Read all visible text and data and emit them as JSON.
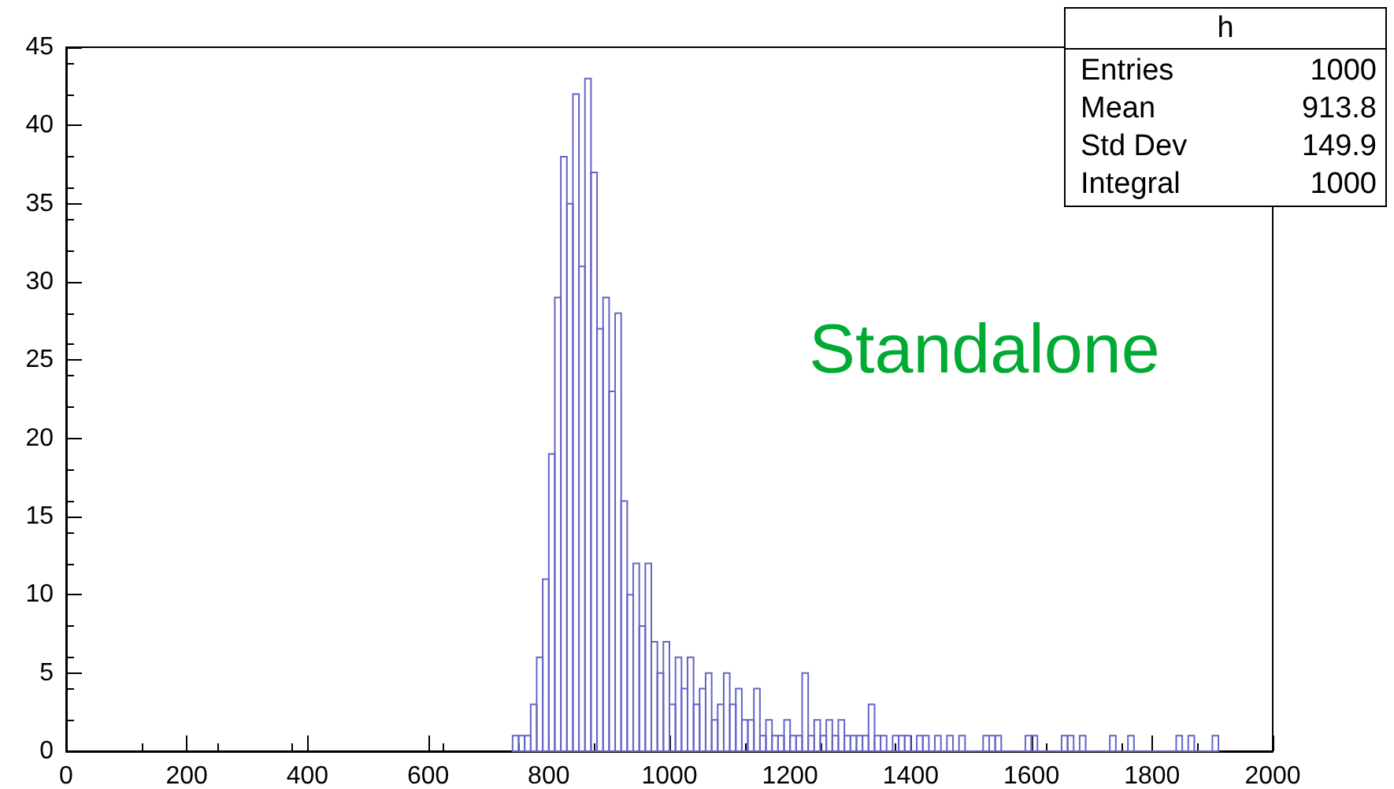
{
  "chart_data": {
    "type": "histogram",
    "bins": [
      740,
      750,
      760,
      770,
      780,
      790,
      800,
      810,
      820,
      830,
      840,
      850,
      860,
      870,
      880,
      890,
      900,
      910,
      920,
      930,
      940,
      950,
      960,
      970,
      980,
      990,
      1000,
      1010,
      1020,
      1030,
      1040,
      1050,
      1060,
      1070,
      1080,
      1090,
      1100,
      1110,
      1120,
      1130,
      1140,
      1150,
      1160,
      1170,
      1180,
      1190,
      1200,
      1210,
      1220,
      1230,
      1240,
      1250,
      1260,
      1270,
      1280,
      1290,
      1300,
      1310,
      1320,
      1330,
      1340,
      1350,
      1360,
      1370,
      1380,
      1390,
      1400,
      1410,
      1420,
      1430,
      1440,
      1450,
      1460,
      1470,
      1480,
      1490,
      1500,
      1510,
      1520,
      1530,
      1540,
      1550,
      1560,
      1570,
      1580,
      1590,
      1600,
      1610,
      1620,
      1630,
      1640,
      1650,
      1660,
      1670,
      1680,
      1690,
      1700,
      1710,
      1720,
      1730,
      1740,
      1750,
      1760,
      1770,
      1780,
      1790,
      1800,
      1810,
      1820,
      1830,
      1840,
      1850,
      1860,
      1870,
      1880,
      1890,
      1900,
      1910
    ],
    "values": [
      1,
      1,
      1,
      3,
      6,
      11,
      19,
      29,
      38,
      35,
      42,
      31,
      43,
      37,
      27,
      29,
      23,
      28,
      16,
      10,
      12,
      8,
      12,
      7,
      5,
      7,
      3,
      6,
      4,
      6,
      3,
      4,
      5,
      2,
      3,
      5,
      3,
      4,
      2,
      2,
      4,
      1,
      2,
      1,
      1,
      2,
      1,
      1,
      5,
      1,
      2,
      1,
      2,
      1,
      2,
      1,
      1,
      1,
      1,
      3,
      1,
      1,
      0,
      1,
      1,
      1,
      0,
      1,
      1,
      0,
      1,
      0,
      1,
      0,
      1,
      0,
      0,
      0,
      1,
      1,
      1,
      0,
      0,
      0,
      0,
      1,
      1,
      0,
      0,
      0,
      0,
      1,
      1,
      0,
      1,
      0,
      0,
      0,
      0,
      1,
      0,
      0,
      1,
      0,
      0,
      0,
      0,
      0,
      0,
      0,
      1,
      0,
      1,
      0,
      0,
      0,
      1
    ],
    "color": "#6464c8",
    "xlim": [
      0,
      2000
    ],
    "xticks": [
      0,
      200,
      400,
      600,
      800,
      1000,
      1200,
      1400,
      1600,
      1800,
      2000
    ],
    "ylim": [
      0,
      45
    ],
    "yticks": [
      0,
      5,
      10,
      15,
      20,
      25,
      30,
      35,
      40,
      45
    ],
    "annotations": [
      "h",
      "Entries",
      "1000",
      "Mean",
      "913.8",
      "Std Dev",
      "149.9",
      "Integral",
      "1000",
      "Standalone"
    ]
  }
}
